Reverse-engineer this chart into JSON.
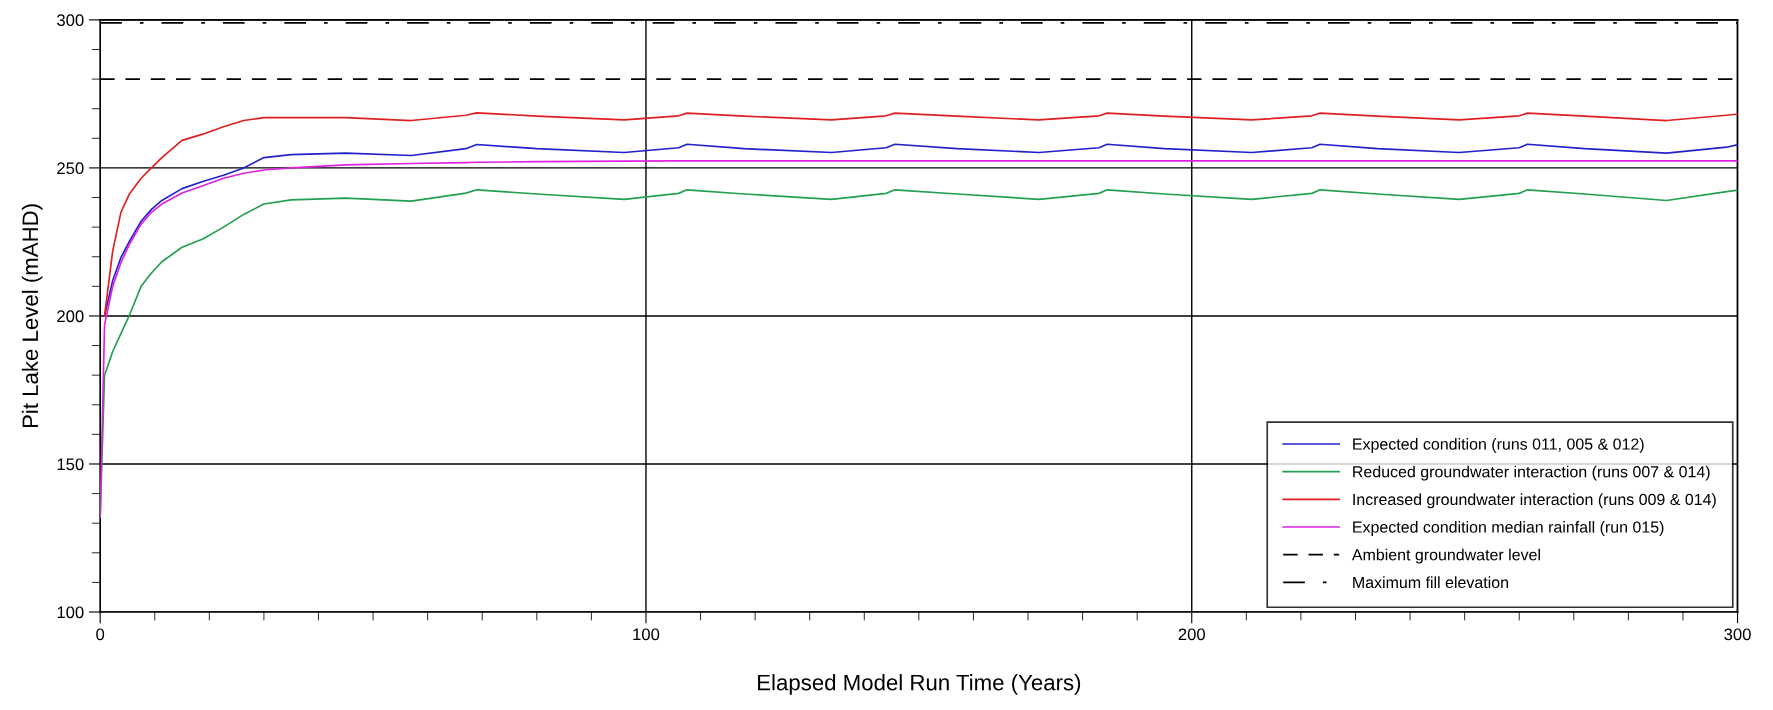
{
  "chart_data": {
    "type": "line",
    "xlabel": "Elapsed Model Run Time (Years)",
    "ylabel": "Pit Lake Level (mAHD)",
    "x": [
      0,
      0.8,
      2.3,
      3.8,
      5.3,
      7.5,
      9.4,
      11.3,
      15,
      18.8,
      22.6,
      26.3,
      30,
      35,
      45,
      57,
      67,
      69,
      80,
      96,
      106,
      107.5,
      118,
      134,
      144,
      145.6,
      157,
      172,
      183,
      184.5,
      195,
      211,
      222,
      223.5,
      234,
      249,
      260,
      261.5,
      272,
      287,
      298,
      300
    ],
    "series": [
      {
        "name": "Expected condition (runs 011, 005 & 012)",
        "color": "#2222cc",
        "values": [
          null,
          200,
          212,
          219.7,
          225,
          232,
          236,
          239,
          243,
          245.4,
          247.5,
          250,
          253.5,
          254.5,
          255,
          254.2,
          256.5,
          257.9,
          256.5,
          255.2,
          256.8,
          258,
          256.5,
          255.2,
          256.8,
          258,
          256.5,
          255.2,
          256.8,
          258,
          256.5,
          255.2,
          256.8,
          258,
          256.5,
          255.2,
          256.8,
          258,
          256.5,
          255,
          257,
          257.8
        ]
      },
      {
        "name": "Reduced groundwater interaction (runs 007 & 014)",
        "color": "#22a050",
        "values": [
          132,
          180,
          188,
          194,
          200,
          210,
          214.5,
          218.3,
          223.2,
          226,
          230,
          234.3,
          237.8,
          239.2,
          239.8,
          238.8,
          241.5,
          242.6,
          241.2,
          239.4,
          241.4,
          242.6,
          241.2,
          239.4,
          241.4,
          242.6,
          241.2,
          239.4,
          241.4,
          242.6,
          241.2,
          239.4,
          241.4,
          242.6,
          241.2,
          239.4,
          241.4,
          242.6,
          241.2,
          239,
          242,
          242.5
        ]
      },
      {
        "name": "Increased groundwater interaction (runs 009 & 014)",
        "color": "#e02020",
        "values": [
          null,
          200,
          222,
          235,
          241,
          246.5,
          250,
          253.5,
          259.3,
          261.4,
          263.9,
          266,
          267,
          267,
          267,
          266,
          267.8,
          268.6,
          267.5,
          266.2,
          267.6,
          268.5,
          267.5,
          266.2,
          267.6,
          268.5,
          267.5,
          266.2,
          267.6,
          268.5,
          267.5,
          266.2,
          267.6,
          268.5,
          267.5,
          266.2,
          267.6,
          268.5,
          267.5,
          266,
          267.8,
          268.2
        ]
      },
      {
        "name": "Expected condition median rainfall (run 015)",
        "color": "#e020e0",
        "values": [
          132,
          197,
          210,
          218,
          224,
          231,
          235,
          237.8,
          241.5,
          244,
          246.5,
          248.2,
          249.3,
          250,
          251,
          251.5,
          251.8,
          251.9,
          252.1,
          252.3,
          252.4,
          252.4,
          252.4,
          252.4,
          252.4,
          252.4,
          252.4,
          252.4,
          252.4,
          252.4,
          252.4,
          252.4,
          252.4,
          252.4,
          252.4,
          252.4,
          252.4,
          252.4,
          252.4,
          252.4,
          252.4,
          252.4
        ]
      }
    ],
    "ref_lines": [
      {
        "axis": "y",
        "value": 280,
        "label": "Ambient groundwater level",
        "color": "#000000",
        "line_style": "dashed"
      },
      {
        "axis": "y",
        "value": 299,
        "label": "Maximum fill elevation",
        "color": "#000000",
        "line_style": "dashdot"
      }
    ],
    "xlim": [
      0,
      300
    ],
    "xticks": [
      0,
      100,
      200,
      300
    ],
    "ylim": [
      100,
      300
    ],
    "yticks": [
      100,
      150,
      200,
      250,
      300
    ],
    "grid": true,
    "legend": "bottom right",
    "marker": "none",
    "line_style": "solid"
  }
}
